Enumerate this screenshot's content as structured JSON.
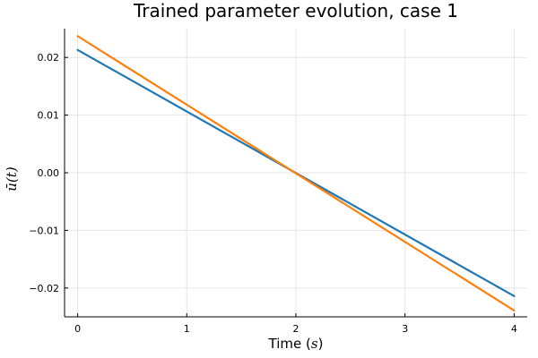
{
  "chart_data": {
    "type": "line",
    "title": "Trained parameter evolution, case 1",
    "xlabel_text": "Time (",
    "xlabel_unit": "s",
    "xlabel_close": ")",
    "ylabel": "ū(t)",
    "xlim": [
      -0.12,
      4.12
    ],
    "ylim": [
      -0.025,
      0.025
    ],
    "xticks": [
      0,
      1,
      2,
      3,
      4
    ],
    "xtick_labels": [
      "0",
      "1",
      "2",
      "3",
      "4"
    ],
    "yticks": [
      -0.02,
      -0.01,
      0.0,
      0.01,
      0.02
    ],
    "ytick_labels": [
      "−0.02",
      "−0.01",
      "0.00",
      "0.01",
      "0.02"
    ],
    "grid": true,
    "legend": "none",
    "series": [
      {
        "x": [
          0,
          4
        ],
        "y": [
          0.0213,
          -0.0214
        ],
        "color": "#1f77b4"
      },
      {
        "x": [
          0,
          4
        ],
        "y": [
          0.0237,
          -0.0239
        ],
        "color": "#ff7f0e"
      }
    ]
  }
}
